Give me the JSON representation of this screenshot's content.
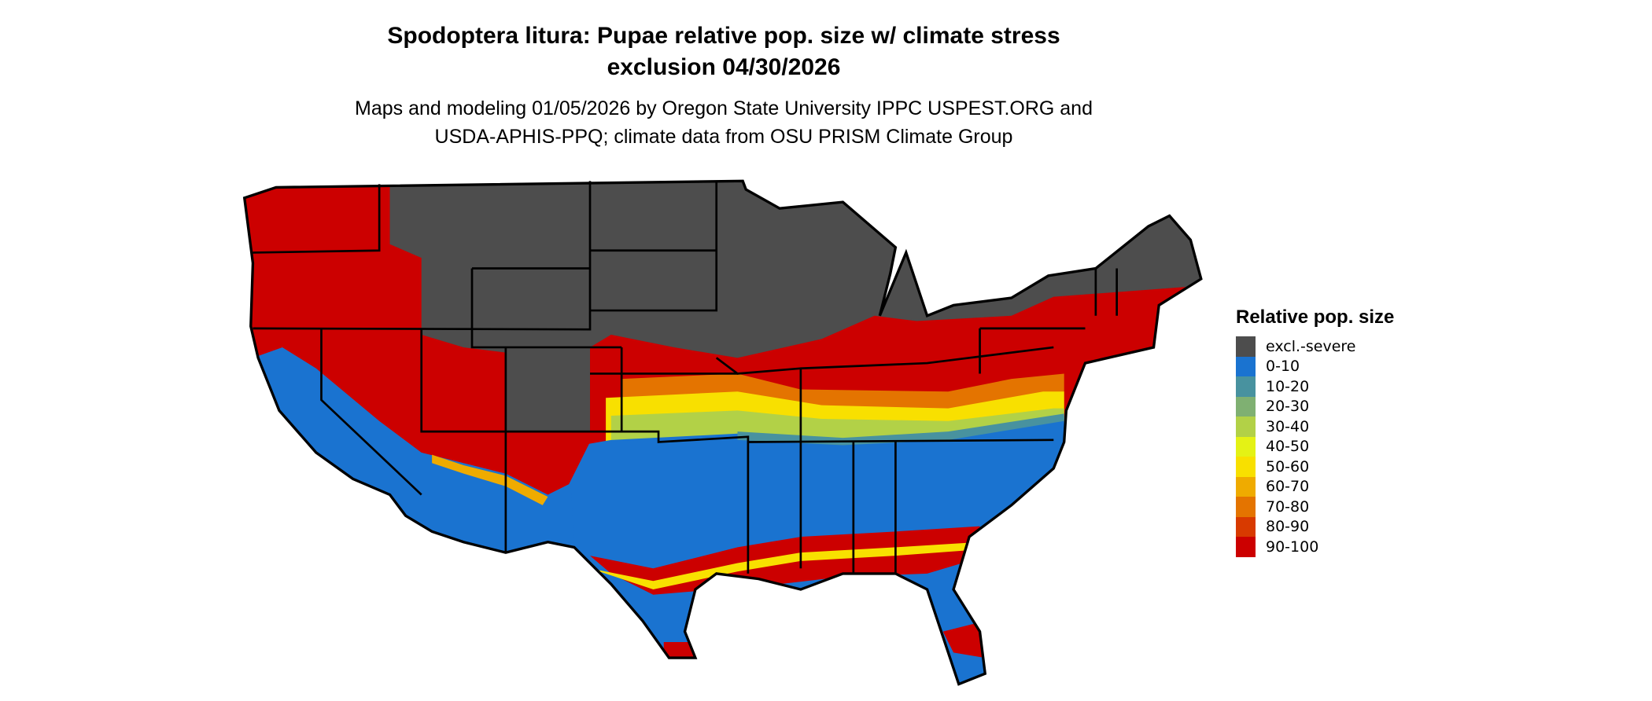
{
  "title": {
    "line1": "Spodoptera litura: Pupae relative pop. size w/ climate stress",
    "line2": "exclusion 04/30/2026"
  },
  "subtitle": {
    "line1": "Maps and modeling 01/05/2026 by Oregon State University IPPC USPEST.ORG and",
    "line2": "USDA-APHIS-PPQ; climate data from OSU PRISM Climate Group"
  },
  "legend": {
    "title": "Relative pop. size",
    "items": [
      {
        "label": "excl.-severe",
        "color": "#4d4d4d"
      },
      {
        "label": "0-10",
        "color": "#1a73d0"
      },
      {
        "label": "10-20",
        "color": "#48929f"
      },
      {
        "label": "20-30",
        "color": "#7fb072"
      },
      {
        "label": "30-40",
        "color": "#b2d147"
      },
      {
        "label": "40-50",
        "color": "#e4f215"
      },
      {
        "label": "50-60",
        "color": "#f8e000"
      },
      {
        "label": "60-70",
        "color": "#efab00"
      },
      {
        "label": "70-80",
        "color": "#e47400"
      },
      {
        "label": "80-90",
        "color": "#d83a00"
      },
      {
        "label": "90-100",
        "color": "#cc0000"
      }
    ]
  }
}
